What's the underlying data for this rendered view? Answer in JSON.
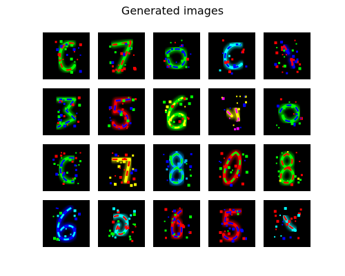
{
  "figure": {
    "title": "Generated images"
  },
  "grid": {
    "rows": 4,
    "cols": 5,
    "background_color": "#000000"
  },
  "tiles": [
    {
      "row": 0,
      "col": 0,
      "depicts": "scribble resembling 6",
      "colors": [
        "#00ff00",
        "#ff0000",
        "#0000ff"
      ]
    },
    {
      "row": 0,
      "col": 1,
      "depicts": "digit 7",
      "colors": [
        "#00ff00",
        "#ff0000",
        "#0000ff"
      ]
    },
    {
      "row": 0,
      "col": 2,
      "depicts": "noisy blob",
      "colors": [
        "#00ff00",
        "#0000ff",
        "#ff0000"
      ]
    },
    {
      "row": 0,
      "col": 3,
      "depicts": "cyan C-like stroke",
      "colors": [
        "#00ffff",
        "#0000ff",
        "#ff0000"
      ]
    },
    {
      "row": 0,
      "col": 4,
      "depicts": "sparse specks",
      "colors": [
        "#0000ff",
        "#ff0000",
        "#00ff00"
      ]
    },
    {
      "row": 1,
      "col": 0,
      "depicts": "digit 3 noisy",
      "colors": [
        "#00ff00",
        "#0000ff",
        "#ff0000"
      ]
    },
    {
      "row": 1,
      "col": 1,
      "depicts": "red digit 5",
      "colors": [
        "#ff0000",
        "#0000ff",
        "#00ff00"
      ]
    },
    {
      "row": 1,
      "col": 2,
      "depicts": "digit 6 glowing",
      "colors": [
        "#00ff00",
        "#ffff00",
        "#ff0000"
      ]
    },
    {
      "row": 1,
      "col": 3,
      "depicts": "scattered specks",
      "colors": [
        "#ffff00",
        "#ff00ff",
        "#0000ff"
      ]
    },
    {
      "row": 1,
      "col": 4,
      "depicts": "blurry digit",
      "colors": [
        "#00ff00",
        "#0000ff",
        "#ff0000"
      ]
    },
    {
      "row": 2,
      "col": 0,
      "depicts": "green specks",
      "colors": [
        "#00ff00",
        "#0000ff",
        "#ff0000"
      ]
    },
    {
      "row": 2,
      "col": 1,
      "depicts": "faint 7",
      "colors": [
        "#ffff00",
        "#ff0000",
        "#0000ff"
      ]
    },
    {
      "row": 2,
      "col": 2,
      "depicts": "blurry 8",
      "colors": [
        "#00aaff",
        "#00ff00",
        "#0000ff"
      ]
    },
    {
      "row": 2,
      "col": 3,
      "depicts": "red oval 0",
      "colors": [
        "#ff0000",
        "#00ff00",
        "#0000ff"
      ]
    },
    {
      "row": 2,
      "col": 4,
      "depicts": "green 8",
      "colors": [
        "#00ff00",
        "#ff0000",
        "#ffff00"
      ]
    },
    {
      "row": 3,
      "col": 0,
      "depicts": "blue 6",
      "colors": [
        "#0000ff",
        "#00ffff",
        "#00ff00"
      ]
    },
    {
      "row": 3,
      "col": 1,
      "depicts": "noisy blob",
      "colors": [
        "#00ffff",
        "#ff0000",
        "#00ff00"
      ]
    },
    {
      "row": 3,
      "col": 2,
      "depicts": "noisy digit",
      "colors": [
        "#ff0000",
        "#0000ff",
        "#00ff00"
      ]
    },
    {
      "row": 3,
      "col": 3,
      "depicts": "red 5",
      "colors": [
        "#ff0000",
        "#0000ff",
        "#00ff00"
      ]
    },
    {
      "row": 3,
      "col": 4,
      "depicts": "cyan specks",
      "colors": [
        "#00ffff",
        "#ff0000",
        "#0000ff"
      ]
    }
  ]
}
